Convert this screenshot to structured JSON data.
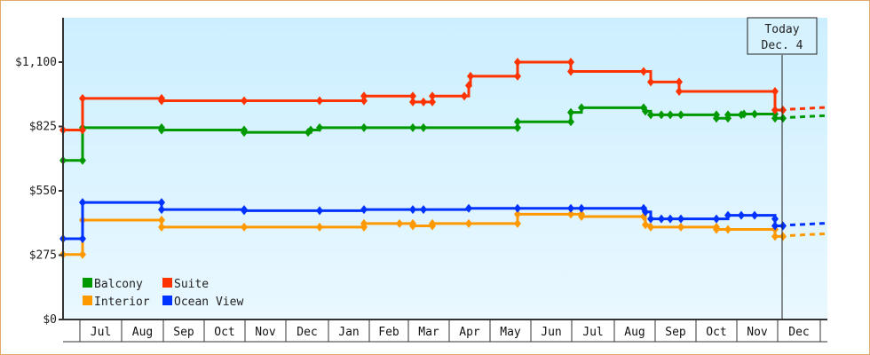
{
  "chart_data": {
    "type": "line",
    "subtype": "step",
    "title": "",
    "xlabel": "",
    "ylabel": "",
    "ylim": [
      0,
      1100
    ],
    "y_ticks": [
      {
        "value": 0,
        "label": "$0"
      },
      {
        "value": 275,
        "label": "$275"
      },
      {
        "value": 550,
        "label": "$550"
      },
      {
        "value": 825,
        "label": "$825"
      },
      {
        "value": 1100,
        "label": "$1,100"
      }
    ],
    "months": [
      "Jul",
      "Aug",
      "Sep",
      "Oct",
      "Nov",
      "Dec",
      "Jan",
      "Feb",
      "Mar",
      "Apr",
      "May",
      "Jun",
      "Jul",
      "Aug",
      "Sep",
      "Oct",
      "Nov",
      "Dec"
    ],
    "today": {
      "line1": "Today",
      "line2": "Dec. 4"
    },
    "grid": false,
    "legend_position": "bottom-left-inside",
    "series": [
      {
        "name": "Balcony",
        "color": "#009900",
        "points": [
          [
            71,
            680
          ],
          [
            93,
            680
          ],
          [
            93,
            820
          ],
          [
            182,
            820
          ],
          [
            182,
            810
          ],
          [
            275,
            810
          ],
          [
            275,
            800
          ],
          [
            347,
            800
          ],
          [
            350,
            810
          ],
          [
            360,
            820
          ],
          [
            410,
            820
          ],
          [
            465,
            820
          ],
          [
            477,
            820
          ],
          [
            583,
            820
          ],
          [
            583,
            845
          ],
          [
            643,
            845
          ],
          [
            643,
            885
          ],
          [
            655,
            905
          ],
          [
            725,
            905
          ],
          [
            727,
            890
          ],
          [
            733,
            875
          ],
          [
            745,
            875
          ],
          [
            755,
            875
          ],
          [
            767,
            875
          ],
          [
            807,
            875
          ],
          [
            807,
            860
          ],
          [
            820,
            860
          ],
          [
            820,
            875
          ],
          [
            835,
            875
          ],
          [
            838,
            878
          ],
          [
            850,
            878
          ],
          [
            873,
            878
          ],
          [
            873,
            860
          ],
          [
            882,
            860
          ]
        ],
        "forecast": [
          [
            890,
            860
          ],
          [
            930,
            860
          ]
        ]
      },
      {
        "name": "Suite",
        "color": "#ff3300",
        "points": [
          [
            71,
            810
          ],
          [
            93,
            810
          ],
          [
            93,
            945
          ],
          [
            182,
            945
          ],
          [
            182,
            935
          ],
          [
            275,
            935
          ],
          [
            275,
            935
          ],
          [
            360,
            935
          ],
          [
            410,
            935
          ],
          [
            410,
            955
          ],
          [
            465,
            955
          ],
          [
            465,
            930
          ],
          [
            477,
            930
          ],
          [
            487,
            930
          ],
          [
            487,
            955
          ],
          [
            523,
            955
          ],
          [
            528,
            1000
          ],
          [
            530,
            1040
          ],
          [
            583,
            1040
          ],
          [
            583,
            1100
          ],
          [
            643,
            1100
          ],
          [
            643,
            1060
          ],
          [
            725,
            1060
          ],
          [
            733,
            1015
          ],
          [
            765,
            1015
          ],
          [
            765,
            975
          ],
          [
            873,
            975
          ],
          [
            873,
            895
          ],
          [
            882,
            895
          ]
        ],
        "forecast": [
          [
            890,
            895
          ],
          [
            930,
            895
          ]
        ]
      },
      {
        "name": "Interior",
        "color": "#ff9900",
        "points": [
          [
            71,
            278
          ],
          [
            93,
            278
          ],
          [
            93,
            425
          ],
          [
            182,
            425
          ],
          [
            182,
            395
          ],
          [
            275,
            395
          ],
          [
            275,
            395
          ],
          [
            360,
            395
          ],
          [
            410,
            395
          ],
          [
            410,
            410
          ],
          [
            450,
            410
          ],
          [
            465,
            410
          ],
          [
            465,
            400
          ],
          [
            487,
            400
          ],
          [
            487,
            410
          ],
          [
            528,
            410
          ],
          [
            583,
            410
          ],
          [
            583,
            450
          ],
          [
            643,
            450
          ],
          [
            655,
            450
          ],
          [
            655,
            440
          ],
          [
            725,
            440
          ],
          [
            727,
            405
          ],
          [
            733,
            395
          ],
          [
            767,
            395
          ],
          [
            807,
            395
          ],
          [
            807,
            385
          ],
          [
            820,
            385
          ],
          [
            873,
            385
          ],
          [
            873,
            355
          ],
          [
            882,
            355
          ]
        ],
        "forecast": [
          [
            890,
            355
          ],
          [
            930,
            355
          ]
        ]
      },
      {
        "name": "Ocean View",
        "color": "#0033ff",
        "points": [
          [
            71,
            345
          ],
          [
            93,
            345
          ],
          [
            93,
            500
          ],
          [
            182,
            500
          ],
          [
            182,
            470
          ],
          [
            275,
            470
          ],
          [
            275,
            465
          ],
          [
            360,
            465
          ],
          [
            410,
            470
          ],
          [
            465,
            470
          ],
          [
            477,
            470
          ],
          [
            528,
            475
          ],
          [
            583,
            475
          ],
          [
            643,
            475
          ],
          [
            655,
            475
          ],
          [
            725,
            475
          ],
          [
            727,
            460
          ],
          [
            733,
            430
          ],
          [
            745,
            430
          ],
          [
            755,
            430
          ],
          [
            767,
            430
          ],
          [
            807,
            430
          ],
          [
            820,
            445
          ],
          [
            835,
            445
          ],
          [
            850,
            445
          ],
          [
            873,
            430
          ],
          [
            873,
            400
          ],
          [
            882,
            400
          ]
        ],
        "forecast": [
          [
            890,
            400
          ],
          [
            930,
            400
          ]
        ]
      }
    ]
  },
  "legend": {
    "items": [
      {
        "label": "Balcony",
        "color": "#009900"
      },
      {
        "label": "Suite",
        "color": "#ff3300"
      },
      {
        "label": "Interior",
        "color": "#ff9900"
      },
      {
        "label": "Ocean View",
        "color": "#0033ff"
      }
    ]
  }
}
